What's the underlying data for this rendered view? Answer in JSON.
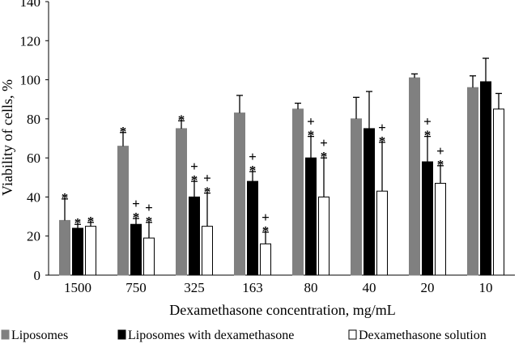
{
  "chart_data": {
    "type": "bar",
    "title": "",
    "xlabel": "Dexamethasone concentration, mg/mL",
    "ylabel": "Viability of cells, %",
    "ylim": [
      0,
      140
    ],
    "yticks": [
      0,
      20,
      40,
      60,
      80,
      100,
      120,
      140
    ],
    "grid": false,
    "legend_position": "bottom",
    "categories": [
      "1500",
      "750",
      "325",
      "163",
      "80",
      "40",
      "20",
      "10"
    ],
    "series": [
      {
        "name": "Liposomes",
        "color": "#808080",
        "values": [
          28,
          66,
          75,
          83,
          85,
          80,
          101,
          96
        ],
        "errors": [
          11,
          7,
          4,
          9,
          3,
          11,
          2,
          6
        ],
        "annotations": [
          "*",
          "*",
          "*",
          "",
          "",
          "",
          "",
          ""
        ]
      },
      {
        "name": "Liposomes with dexamethasone",
        "color": "#000000",
        "values": [
          24,
          26,
          40,
          48,
          60,
          75,
          58,
          99
        ],
        "errors": [
          2,
          3,
          8,
          5,
          11,
          19,
          13,
          12
        ],
        "annotations": [
          "*",
          "+*",
          "+*",
          "+*",
          "+*",
          "",
          "+*",
          ""
        ]
      },
      {
        "name": "Dexamethasone solution",
        "color": "#ffffff",
        "values": [
          25,
          19,
          25,
          16,
          40,
          43,
          47,
          85
        ],
        "errors": [
          2,
          8,
          17,
          6,
          20,
          25,
          9,
          8
        ],
        "annotations": [
          "*",
          "+*",
          "+*",
          "+*",
          "+*",
          "+*",
          "+*",
          ""
        ]
      }
    ]
  }
}
